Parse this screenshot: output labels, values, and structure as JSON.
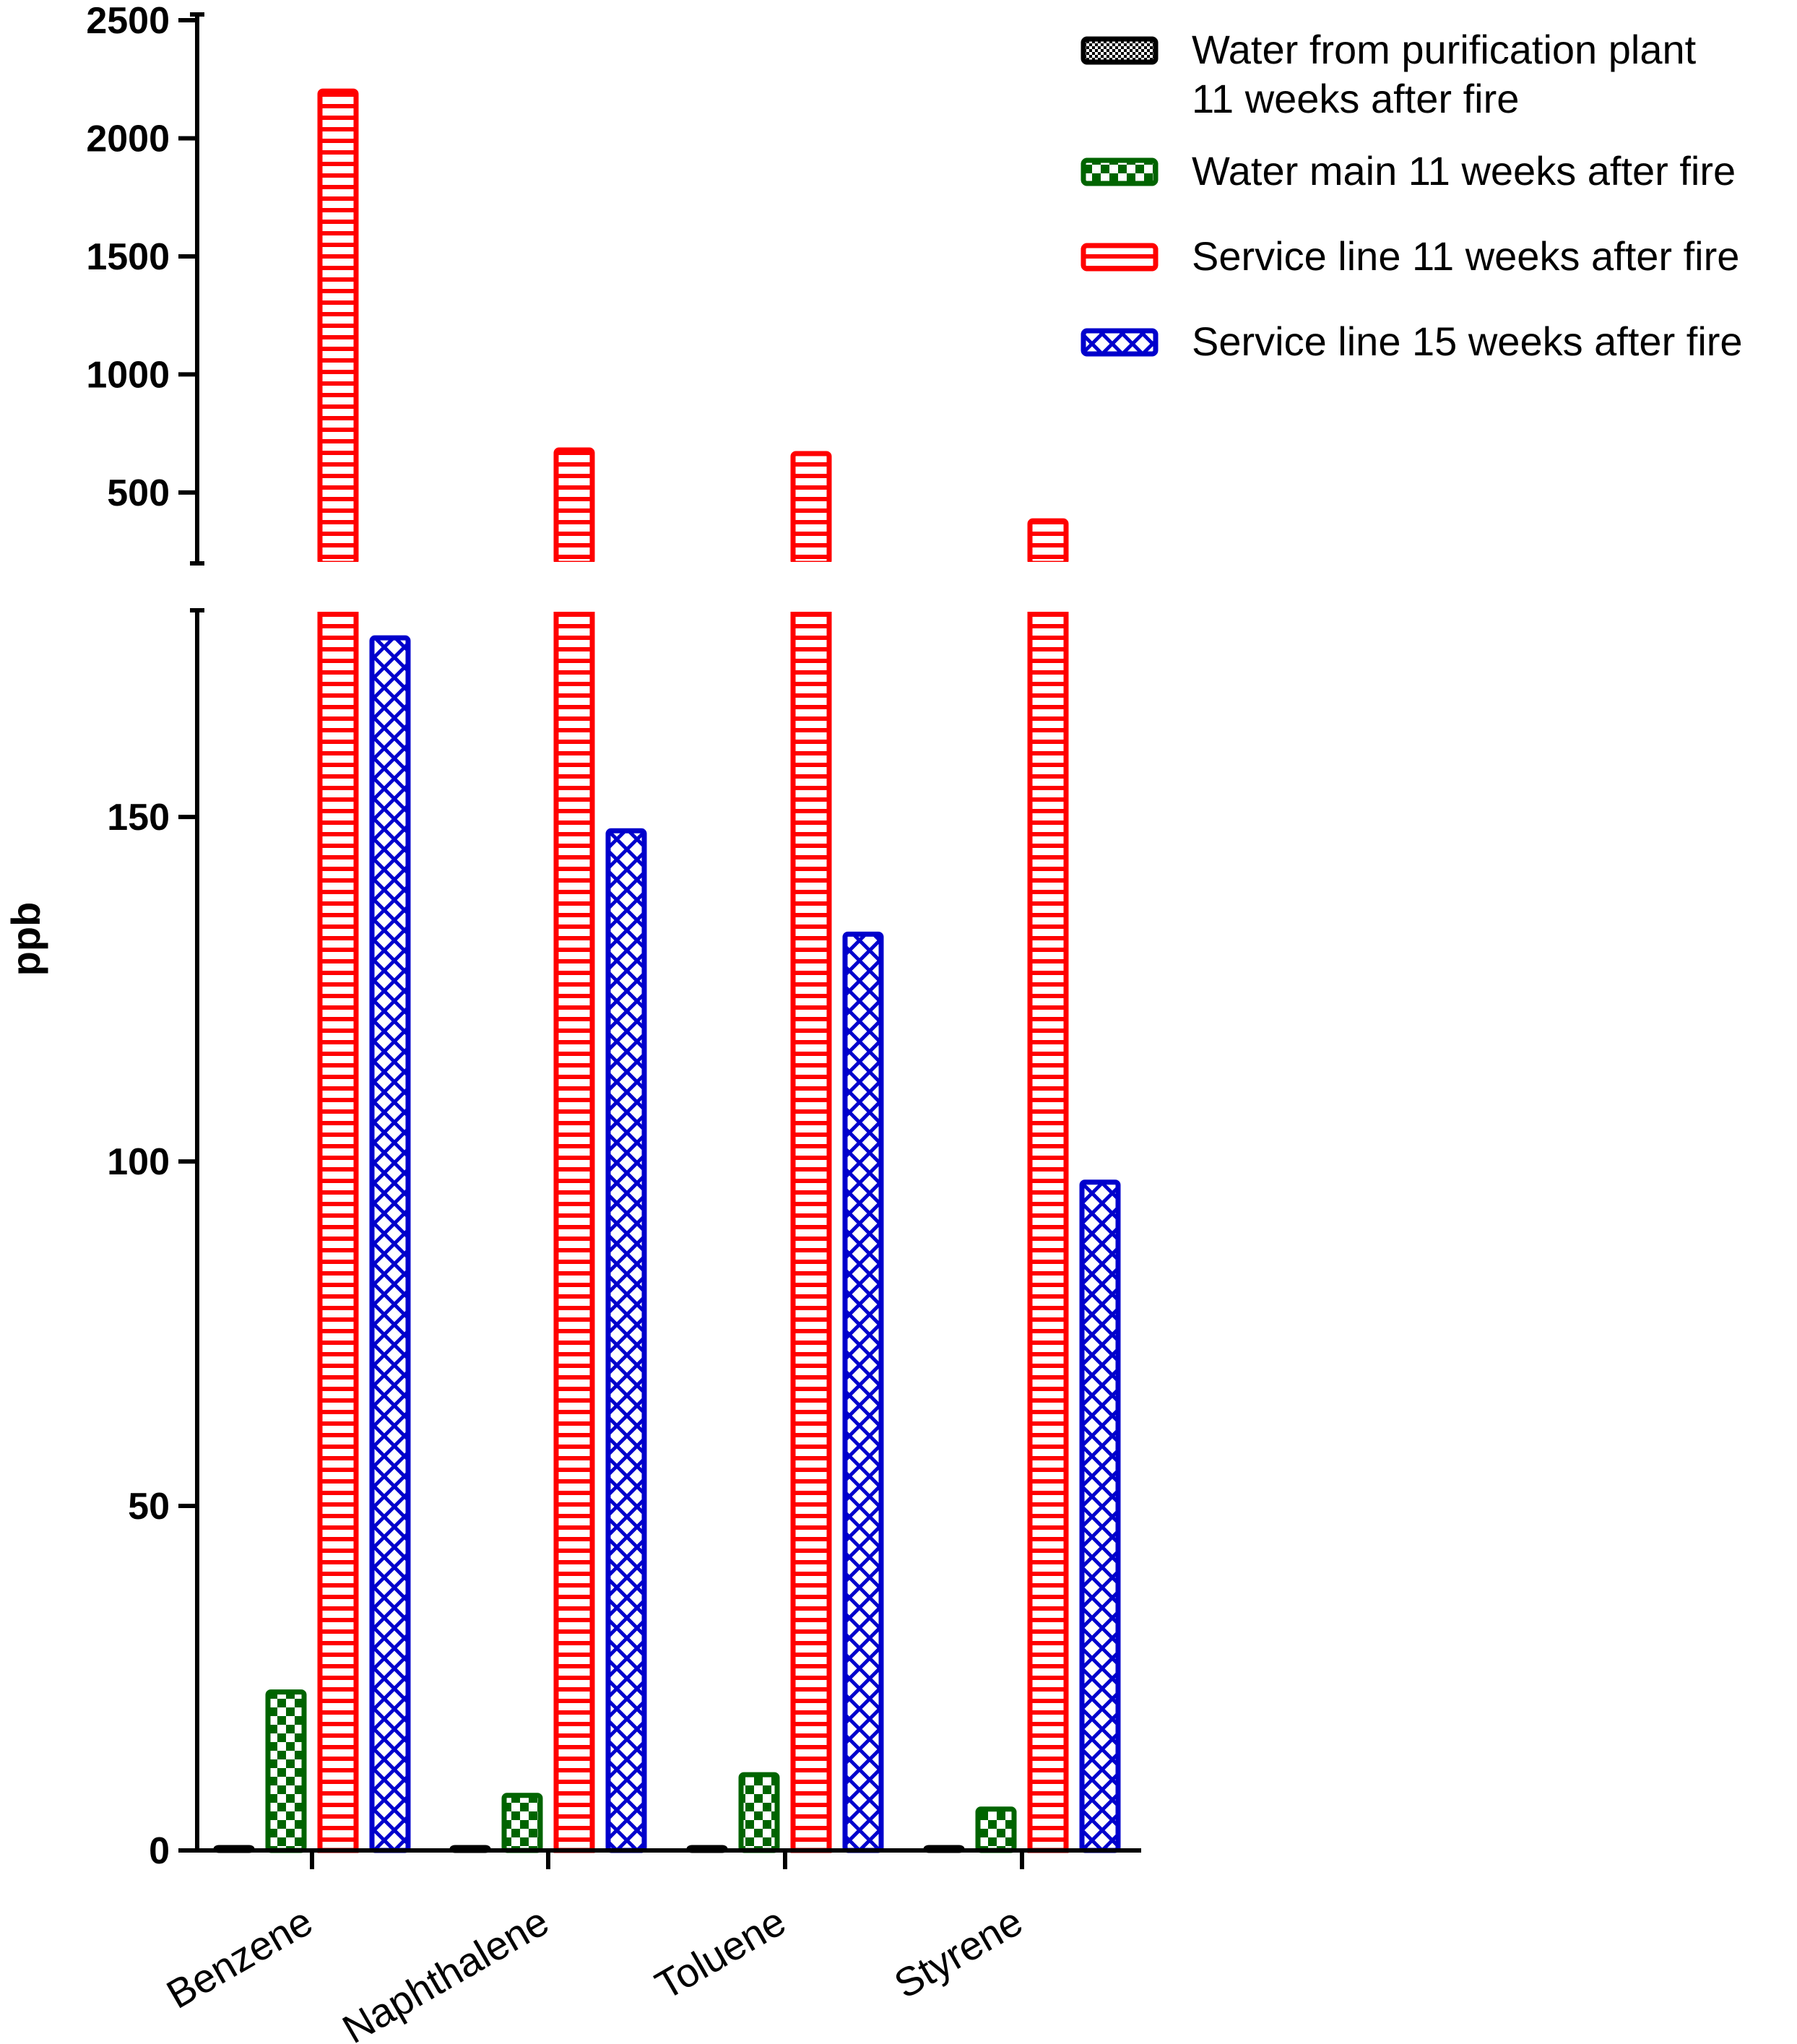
{
  "chart_data": {
    "type": "bar",
    "title": "",
    "xlabel": "",
    "ylabel": "ppb",
    "categories": [
      "Benzene",
      "Naphthalene",
      "Toluene",
      "Styrene"
    ],
    "series": [
      {
        "name": "Water from purification plant\n11 weeks after fire",
        "color": "#000000",
        "pattern": "checker-fine",
        "values": [
          0.3,
          0.3,
          0.3,
          0.3
        ]
      },
      {
        "name": "Water main 11 weeks after fire",
        "color": "#006400",
        "pattern": "checker",
        "values": [
          23,
          8,
          11,
          6
        ]
      },
      {
        "name": "Service line 11 weeks after fire",
        "color": "#ff0000",
        "pattern": "horizontal-lines",
        "values": [
          2200,
          680,
          665,
          380
        ]
      },
      {
        "name": "Service line 15 weeks after fire",
        "color": "#0000cc",
        "pattern": "crosshatch",
        "values": [
          176,
          148,
          133,
          97
        ]
      }
    ],
    "y_axis_broken": true,
    "y_lower_range": [
      0,
      180
    ],
    "y_lower_ticks": [
      "0",
      "50",
      "100",
      "150"
    ],
    "y_upper_range": [
      200,
      2500
    ],
    "y_upper_ticks": [
      "500",
      "1000",
      "1500",
      "2000",
      "2500"
    ],
    "legend_position": "top-right",
    "grid": false
  }
}
